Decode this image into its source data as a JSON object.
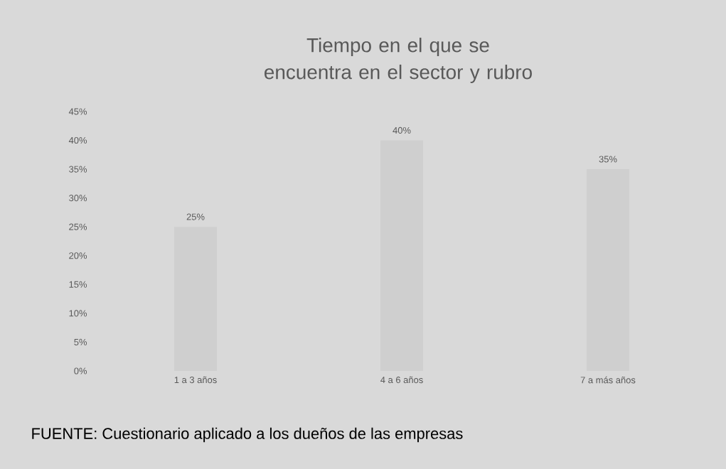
{
  "chart_data": {
    "type": "bar",
    "title": "Tiempo en el que se encuentra en el sector y rubro",
    "categories": [
      "1 a 3 años",
      "4 a 6 años",
      "7 a más años"
    ],
    "values": [
      25,
      40,
      35
    ],
    "color": "#cfcfcf",
    "value_labels": [
      "25%",
      "40%",
      "35%"
    ],
    "ylim": [
      0,
      45
    ],
    "yticks": [
      {
        "value": 0,
        "label": "0%"
      },
      {
        "value": 5,
        "label": "5%"
      },
      {
        "value": 10,
        "label": "10%"
      },
      {
        "value": 15,
        "label": "15%"
      },
      {
        "value": 20,
        "label": "20%"
      },
      {
        "value": 25,
        "label": "25%"
      },
      {
        "value": 30,
        "label": "30%"
      },
      {
        "value": 35,
        "label": "35%"
      },
      {
        "value": 40,
        "label": "40%"
      },
      {
        "value": 45,
        "label": "45%"
      }
    ],
    "annotations": [
      "FUENTE: Cuestionario aplicado a los dueños de las empresas"
    ]
  }
}
